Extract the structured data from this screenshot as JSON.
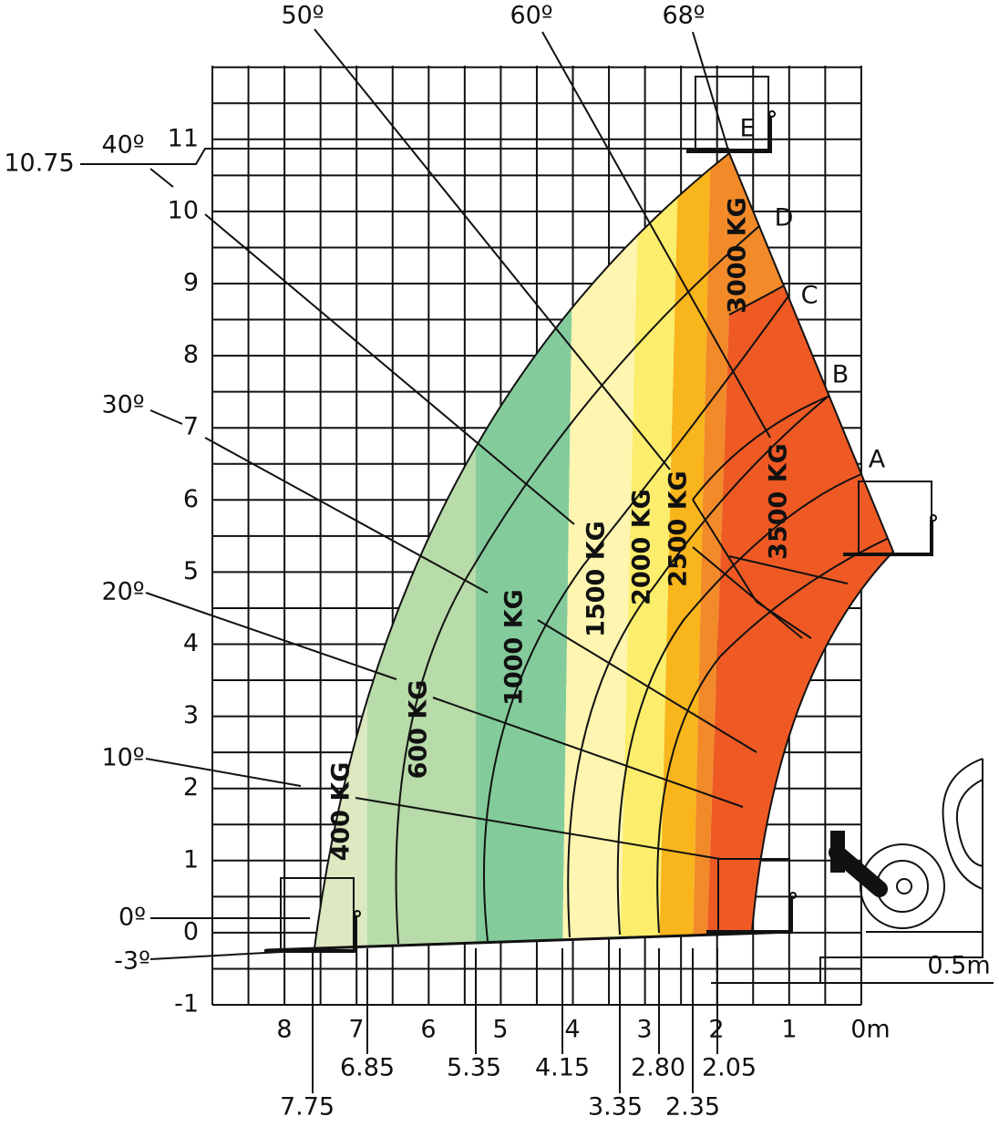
{
  "y_axis": {
    "labels": [
      "-1",
      "0",
      "1",
      "2",
      "3",
      "4",
      "5",
      "6",
      "7",
      "8",
      "9",
      "10",
      "11"
    ]
  },
  "x_axis": {
    "labels": [
      "8",
      "7",
      "6",
      "5",
      "4",
      "3",
      "2",
      "1",
      "0m"
    ],
    "extra_labels": [
      "7.75",
      "6.85",
      "5.35",
      "4.15",
      "3.35",
      "2.80",
      "2.35",
      "2.05"
    ]
  },
  "angles": [
    "50º",
    "60º",
    "68º",
    "40º",
    "30º",
    "20º",
    "10º",
    "0º",
    "-3º"
  ],
  "height_label": "10.75",
  "positions": [
    "A",
    "B",
    "C",
    "D",
    "E"
  ],
  "loads": [
    "400 KG",
    "600 KG",
    "1000 KG",
    "1500 KG",
    "2000 KG",
    "2500 KG",
    "3000 KG",
    "3500 KG"
  ],
  "scale_label": "0.5m"
}
